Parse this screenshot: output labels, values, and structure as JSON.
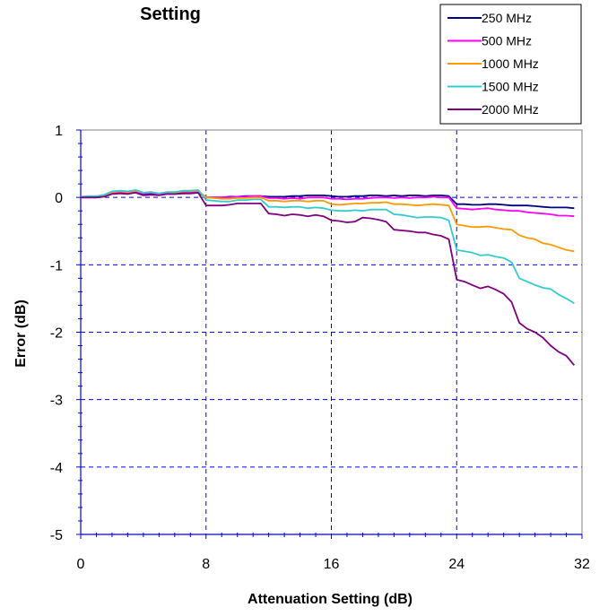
{
  "chart_data": {
    "type": "line",
    "title": "Setting",
    "xlabel": "Attenuation Setting (dB)",
    "ylabel": "Error (dB)",
    "xlim": [
      0,
      32
    ],
    "ylim": [
      -5,
      1
    ],
    "xticks": [
      0,
      8,
      16,
      24,
      32
    ],
    "yticks": [
      1,
      0,
      -1,
      -2,
      -3,
      -4,
      -5
    ],
    "grid": "dashed",
    "legend_position": "top-right",
    "x": [
      0,
      0.5,
      1,
      1.5,
      2,
      2.5,
      3,
      3.5,
      4,
      4.5,
      5,
      5.5,
      6,
      6.5,
      7,
      7.5,
      8,
      8.5,
      9,
      9.5,
      10,
      10.5,
      11,
      11.5,
      12,
      12.5,
      13,
      13.5,
      14,
      14.5,
      15,
      15.5,
      16,
      16.5,
      17,
      17.5,
      18,
      18.5,
      19,
      19.5,
      20,
      20.5,
      21,
      21.5,
      22,
      22.5,
      23,
      23.5,
      24,
      24.5,
      25,
      25.5,
      26,
      26.5,
      27,
      27.5,
      28,
      28.5,
      29,
      29.5,
      30,
      30.5,
      31,
      31.5
    ],
    "series": [
      {
        "name": "250 MHz",
        "color": "#000080",
        "values": [
          0,
          0,
          0,
          0.02,
          0.06,
          0.07,
          0.06,
          0.08,
          0.05,
          0.06,
          0.04,
          0.05,
          0.05,
          0.06,
          0.06,
          0.07,
          0,
          0,
          0,
          0.01,
          0.01,
          0.02,
          0.02,
          0.02,
          0.01,
          0.01,
          0.01,
          0.02,
          0.02,
          0.03,
          0.03,
          0.03,
          0.02,
          0.01,
          0.01,
          0.02,
          0.02,
          0.03,
          0.03,
          0.02,
          0.03,
          0.02,
          0.03,
          0.03,
          0.02,
          0.03,
          0.03,
          0.02,
          -0.1,
          -0.1,
          -0.11,
          -0.11,
          -0.1,
          -0.1,
          -0.11,
          -0.12,
          -0.12,
          -0.12,
          -0.13,
          -0.14,
          -0.15,
          -0.15,
          -0.15,
          -0.16
        ]
      },
      {
        "name": "500 MHz",
        "color": "#FF00FF",
        "values": [
          0,
          0,
          0.01,
          0.02,
          0.07,
          0.08,
          0.07,
          0.09,
          0.06,
          0.07,
          0.05,
          0.07,
          0.06,
          0.08,
          0.08,
          0.09,
          0,
          0,
          0,
          0,
          0.01,
          0.01,
          0.02,
          0.02,
          -0.01,
          -0.01,
          -0.02,
          -0.01,
          -0.02,
          0,
          0,
          0,
          -0.02,
          -0.02,
          -0.03,
          -0.02,
          -0.02,
          -0.01,
          0,
          0,
          -0.01,
          0,
          -0.01,
          0,
          0,
          0.01,
          0,
          0,
          -0.16,
          -0.17,
          -0.18,
          -0.17,
          -0.16,
          -0.18,
          -0.19,
          -0.2,
          -0.2,
          -0.22,
          -0.23,
          -0.24,
          -0.25,
          -0.27,
          -0.27,
          -0.28
        ]
      },
      {
        "name": "1000 MHz",
        "color": "#FF9900",
        "values": [
          0,
          0,
          0.01,
          0.03,
          0.08,
          0.09,
          0.08,
          0.1,
          0.07,
          0.08,
          0.06,
          0.08,
          0.07,
          0.09,
          0.09,
          0.1,
          0,
          -0.01,
          -0.02,
          -0.02,
          -0.01,
          -0.01,
          0,
          0,
          -0.05,
          -0.05,
          -0.06,
          -0.05,
          -0.05,
          -0.06,
          -0.05,
          -0.05,
          -0.1,
          -0.11,
          -0.1,
          -0.09,
          -0.09,
          -0.08,
          -0.08,
          -0.07,
          -0.1,
          -0.1,
          -0.11,
          -0.12,
          -0.11,
          -0.1,
          -0.11,
          -0.12,
          -0.4,
          -0.42,
          -0.44,
          -0.44,
          -0.43,
          -0.45,
          -0.47,
          -0.48,
          -0.56,
          -0.6,
          -0.62,
          -0.68,
          -0.7,
          -0.74,
          -0.78,
          -0.8
        ]
      },
      {
        "name": "1500 MHz",
        "color": "#33CCCC",
        "values": [
          0.01,
          0.02,
          0.02,
          0.04,
          0.09,
          0.1,
          0.09,
          0.11,
          0.07,
          0.08,
          0.06,
          0.08,
          0.08,
          0.1,
          0.1,
          0.11,
          -0.04,
          -0.05,
          -0.06,
          -0.06,
          -0.04,
          -0.04,
          -0.03,
          -0.03,
          -0.14,
          -0.14,
          -0.15,
          -0.14,
          -0.14,
          -0.16,
          -0.15,
          -0.16,
          -0.19,
          -0.2,
          -0.2,
          -0.19,
          -0.2,
          -0.18,
          -0.18,
          -0.18,
          -0.25,
          -0.26,
          -0.28,
          -0.3,
          -0.29,
          -0.29,
          -0.3,
          -0.34,
          -0.78,
          -0.8,
          -0.82,
          -0.86,
          -0.85,
          -0.88,
          -0.9,
          -0.96,
          -1.2,
          -1.25,
          -1.3,
          -1.34,
          -1.36,
          -1.44,
          -1.5,
          -1.57
        ]
      },
      {
        "name": "2000 MHz",
        "color": "#800080",
        "values": [
          0,
          0,
          0,
          0.01,
          0.05,
          0.06,
          0.05,
          0.07,
          0.03,
          0.04,
          0.03,
          0.05,
          0.05,
          0.06,
          0.06,
          0.07,
          -0.12,
          -0.12,
          -0.12,
          -0.11,
          -0.09,
          -0.09,
          -0.09,
          -0.09,
          -0.24,
          -0.25,
          -0.27,
          -0.25,
          -0.26,
          -0.28,
          -0.26,
          -0.28,
          -0.34,
          -0.35,
          -0.37,
          -0.36,
          -0.3,
          -0.31,
          -0.33,
          -0.36,
          -0.48,
          -0.49,
          -0.5,
          -0.52,
          -0.52,
          -0.55,
          -0.57,
          -0.62,
          -1.22,
          -1.25,
          -1.3,
          -1.35,
          -1.32,
          -1.37,
          -1.43,
          -1.55,
          -1.86,
          -1.95,
          -2.0,
          -2.08,
          -2.2,
          -2.29,
          -2.35,
          -2.49
        ]
      }
    ]
  }
}
